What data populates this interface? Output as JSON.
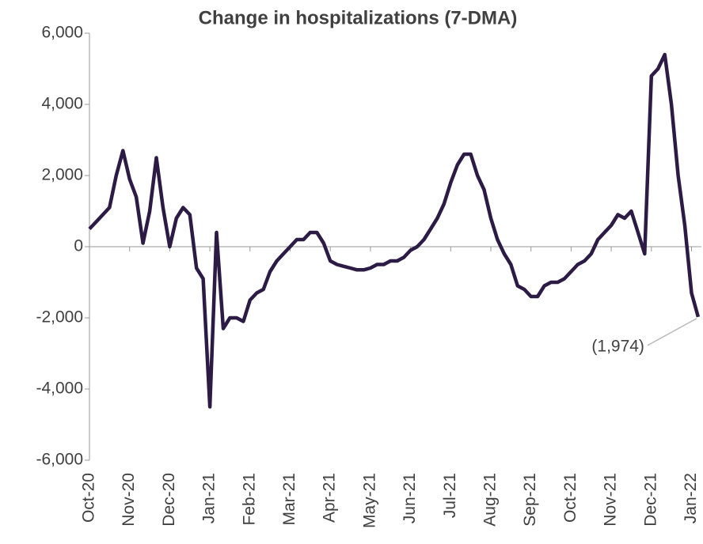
{
  "chart_data": {
    "type": "line",
    "title": "Change in hospitalizations (7-DMA)",
    "categories": [
      "Oct-20",
      null,
      null,
      null,
      null,
      null,
      "Nov-20",
      null,
      null,
      null,
      null,
      null,
      "Dec-20",
      null,
      null,
      null,
      null,
      null,
      "Jan-21",
      null,
      null,
      null,
      null,
      null,
      "Feb-21",
      null,
      null,
      null,
      null,
      null,
      "Mar-21",
      null,
      null,
      null,
      null,
      null,
      "Apr-21",
      null,
      null,
      null,
      null,
      null,
      "May-21",
      null,
      null,
      null,
      null,
      null,
      "Jun-21",
      null,
      null,
      null,
      null,
      null,
      "Jul-21",
      null,
      null,
      null,
      null,
      null,
      "Aug-21",
      null,
      null,
      null,
      null,
      null,
      "Sep-21",
      null,
      null,
      null,
      null,
      null,
      "Oct-21",
      null,
      null,
      null,
      null,
      null,
      "Nov-21",
      null,
      null,
      null,
      null,
      null,
      "Dec-21",
      null,
      null,
      null,
      null,
      null,
      "Jan-22",
      null
    ],
    "series": [
      {
        "name": "Change in hospitalizations",
        "color": "#2b1b45",
        "values": [
          500,
          700,
          900,
          1100,
          2000,
          2700,
          1900,
          1400,
          100,
          1000,
          2500,
          1100,
          0,
          800,
          1100,
          900,
          -600,
          -900,
          -4500,
          400,
          -2300,
          -2000,
          -2000,
          -2100,
          -1500,
          -1300,
          -1200,
          -700,
          -400,
          -200,
          0,
          200,
          200,
          400,
          400,
          100,
          -400,
          -500,
          -550,
          -600,
          -650,
          -650,
          -600,
          -500,
          -500,
          -400,
          -400,
          -300,
          -100,
          0,
          200,
          500,
          800,
          1200,
          1800,
          2300,
          2600,
          2600,
          2000,
          1600,
          800,
          200,
          -200,
          -500,
          -1100,
          -1200,
          -1400,
          -1400,
          -1100,
          -1000,
          -1000,
          -900,
          -700,
          -500,
          -400,
          -200,
          200,
          400,
          600,
          900,
          800,
          1000,
          400,
          -200,
          4800,
          5000,
          5400,
          4000,
          2000,
          600,
          -1300,
          -1974
        ],
        "value_labels": [
          null,
          null,
          null,
          null,
          null,
          null,
          null,
          null,
          null,
          null,
          null,
          null,
          null,
          null,
          null,
          null,
          null,
          null,
          null,
          null,
          null,
          null,
          null,
          null,
          null,
          null,
          null,
          null,
          null,
          null,
          null,
          null,
          null,
          null,
          null,
          null,
          null,
          null,
          null,
          null,
          null,
          null,
          null,
          null,
          null,
          null,
          null,
          null,
          null,
          null,
          null,
          null,
          null,
          null,
          null,
          null,
          null,
          null,
          null,
          null,
          null,
          null,
          null,
          null,
          null,
          null,
          null,
          null,
          null,
          null,
          null,
          null,
          null,
          null,
          null,
          null,
          null,
          null,
          null,
          null,
          null,
          null,
          null,
          null,
          null,
          null,
          null,
          null,
          null,
          null,
          null,
          "(1,974)"
        ]
      }
    ],
    "ylim": [
      -6000,
      6000
    ],
    "yticks": [
      {
        "value": -6000,
        "label": "-6,000"
      },
      {
        "value": -4000,
        "label": "-4,000"
      },
      {
        "value": -2000,
        "label": "-2,000"
      },
      0,
      {
        "value": 2000,
        "label": "2,000"
      },
      {
        "value": 4000,
        "label": "4,000"
      },
      {
        "value": 6000,
        "label": "6,000"
      }
    ]
  }
}
